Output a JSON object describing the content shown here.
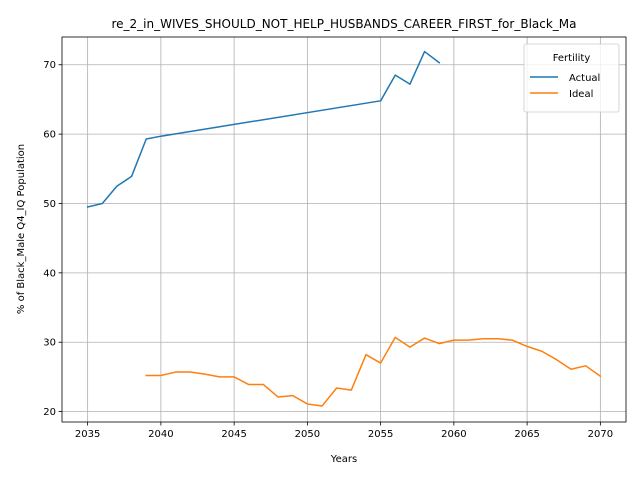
{
  "chart_data": {
    "type": "line",
    "title": "re_2_in_WIVES_SHOULD_NOT_HELP_HUSBANDS_CAREER_FIRST_for_Black_Ma",
    "xlabel": "Years",
    "ylabel": "% of Black_Male Q4_IQ Population",
    "xlim": [
      2033.25,
      2071.75
    ],
    "ylim": [
      18.5,
      74.0
    ],
    "xticks": [
      2035,
      2040,
      2045,
      2050,
      2055,
      2060,
      2065,
      2070
    ],
    "yticks": [
      20,
      30,
      40,
      50,
      60,
      70
    ],
    "grid": true,
    "legend": {
      "title": "Fertility",
      "placement": "upper right"
    },
    "series": [
      {
        "name": "Actual",
        "color": "#1f77b4",
        "x": [
          2035,
          2036,
          2037,
          2038,
          2039,
          2040,
          2055,
          2056,
          2057,
          2058,
          2059
        ],
        "y": [
          49.5,
          50.0,
          52.5,
          53.9,
          59.3,
          59.7,
          64.8,
          68.5,
          67.2,
          71.9,
          70.3
        ]
      },
      {
        "name": "Ideal",
        "color": "#ff7f0e",
        "x": [
          2039,
          2040,
          2041,
          2042,
          2043,
          2044,
          2045,
          2046,
          2047,
          2048,
          2049,
          2050,
          2051,
          2052,
          2053,
          2054,
          2055,
          2056,
          2057,
          2058,
          2059,
          2060,
          2061,
          2062,
          2063,
          2064,
          2065,
          2066,
          2067,
          2068,
          2069,
          2070
        ],
        "y": [
          25.2,
          25.2,
          25.7,
          25.7,
          25.4,
          25.0,
          25.0,
          23.9,
          23.9,
          22.1,
          22.3,
          21.1,
          20.8,
          23.4,
          23.1,
          28.2,
          27.0,
          30.7,
          29.3,
          30.6,
          29.8,
          30.3,
          30.3,
          30.5,
          30.5,
          30.3,
          29.4,
          28.7,
          27.5,
          26.1,
          26.6,
          25.1
        ]
      }
    ]
  }
}
